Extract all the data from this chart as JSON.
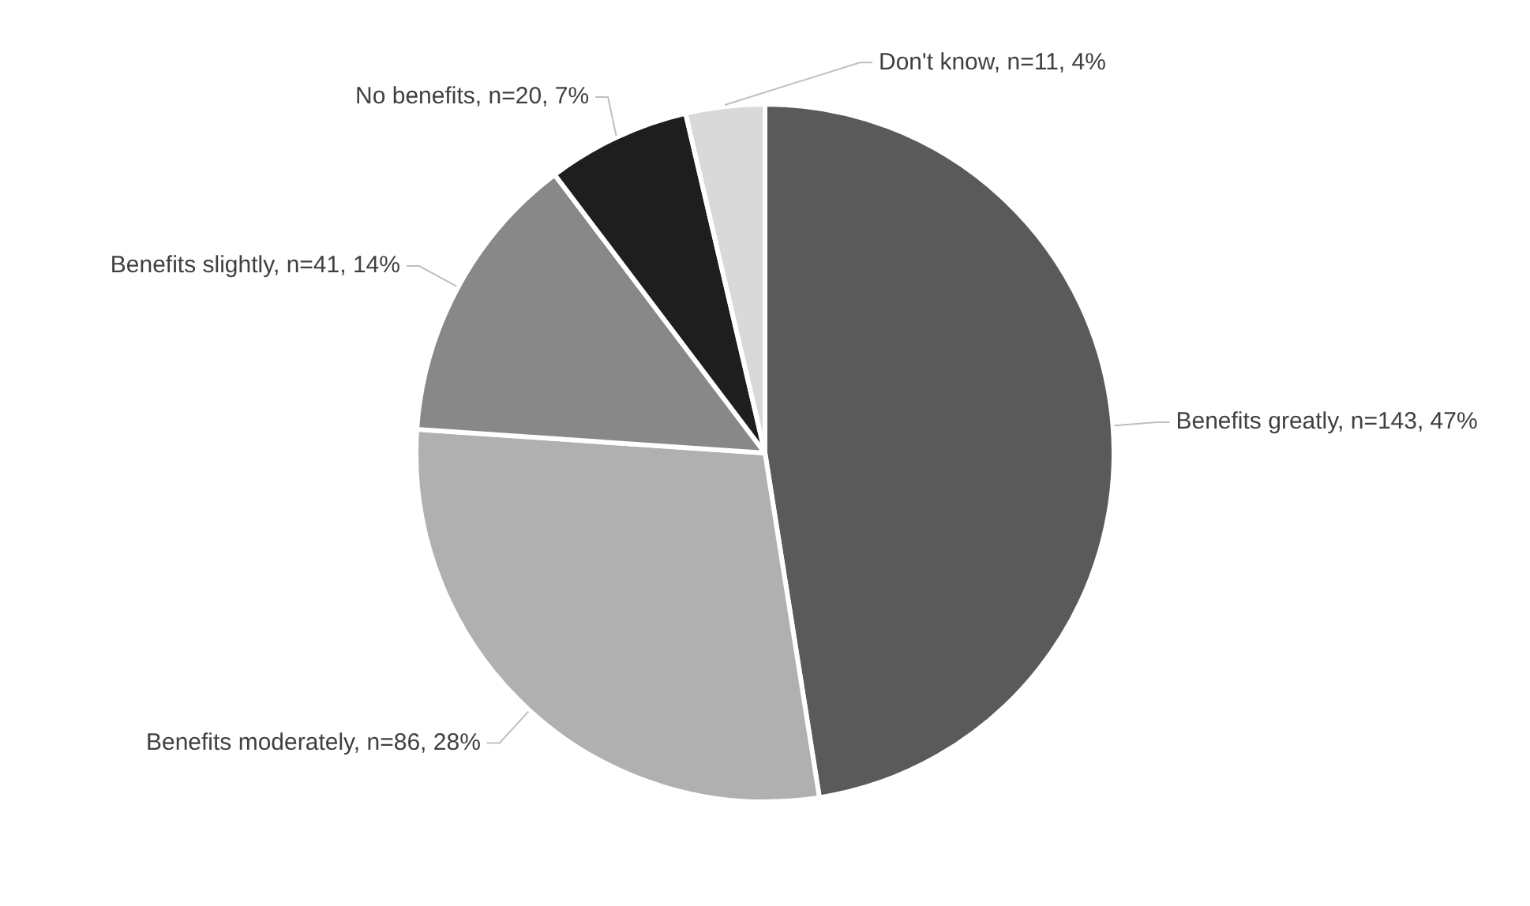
{
  "chart_data": {
    "type": "pie",
    "categories": [
      "Benefits greatly",
      "Benefits moderately",
      "Benefits slightly",
      "No benefits",
      "Don't know"
    ],
    "values": [
      143,
      86,
      41,
      20,
      11
    ],
    "value_labels": [
      "n=143, 47%",
      "n=86, 28%",
      "n=41, 14%",
      "n=20, 7%",
      "n=11, 4%"
    ],
    "colors": [
      "#5a5a5a",
      "#b0b0b0",
      "#888888",
      "#1e1e1e",
      "#d9d9d9"
    ],
    "legend": false
  }
}
